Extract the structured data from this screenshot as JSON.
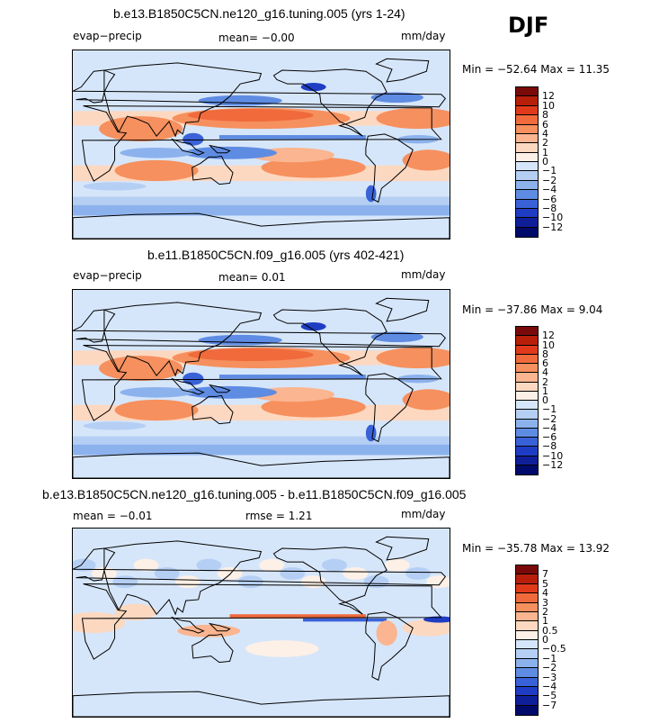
{
  "season": "DJF",
  "chart_data": [
    {
      "type": "heatmap",
      "title": "b.e13.B1850C5CN.ne120_g16.tuning.005 (yrs 1-24)",
      "variable": "evap−precip",
      "mean_text": "mean=   −0.00",
      "units": "mm/day",
      "minmax_text": "Min = −52.64  Max =   11.35",
      "min": -52.64,
      "max": 11.35,
      "levels": [
        "12",
        "10",
        "8",
        "6",
        "4",
        "2",
        "1",
        "0",
        "−1",
        "−2",
        "−4",
        "−6",
        "−8",
        "−10",
        "−12"
      ],
      "colors": [
        "#7a0a0a",
        "#b81f0a",
        "#e03a1a",
        "#f06a3c",
        "#f6905e",
        "#fbb590",
        "#fdd8c0",
        "#fdf0e6",
        "#d6e6fa",
        "#b5cff4",
        "#8cb2ed",
        "#5f8ce3",
        "#3a62d8",
        "#1f3dc4",
        "#0f1f9a",
        "#000a6a"
      ]
    },
    {
      "type": "heatmap",
      "title": "b.e11.B1850C5CN.f09_g16.005 (yrs 402-421)",
      "variable": "evap−precip",
      "mean_text": "mean=   0.01",
      "units": "mm/day",
      "minmax_text": "Min = −37.86  Max =    9.04",
      "min": -37.86,
      "max": 9.04,
      "levels": [
        "12",
        "10",
        "8",
        "6",
        "4",
        "2",
        "1",
        "0",
        "−1",
        "−2",
        "−4",
        "−6",
        "−8",
        "−10",
        "−12"
      ],
      "colors": [
        "#7a0a0a",
        "#b81f0a",
        "#e03a1a",
        "#f06a3c",
        "#f6905e",
        "#fbb590",
        "#fdd8c0",
        "#fdf0e6",
        "#d6e6fa",
        "#b5cff4",
        "#8cb2ed",
        "#5f8ce3",
        "#3a62d8",
        "#1f3dc4",
        "#0f1f9a",
        "#000a6a"
      ]
    },
    {
      "type": "heatmap",
      "title": "b.e13.B1850C5CN.ne120_g16.tuning.005 - b.e11.B1850C5CN.f09_g16.005",
      "mean_text": "mean =   −0.01",
      "rmse_text": "rmse =    1.21",
      "units": "mm/day",
      "minmax_text": "Min = −35.78  Max =   13.92",
      "min": -35.78,
      "max": 13.92,
      "levels": [
        "7",
        "5",
        "4",
        "3",
        "2",
        "1",
        "0.5",
        "0",
        "−0.5",
        "−1",
        "−2",
        "−3",
        "−4",
        "−5",
        "−7"
      ],
      "colors": [
        "#7a0a0a",
        "#b81f0a",
        "#e03a1a",
        "#f06a3c",
        "#f6905e",
        "#fbb590",
        "#fdd8c0",
        "#fdf0e6",
        "#d6e6fa",
        "#b5cff4",
        "#8cb2ed",
        "#5f8ce3",
        "#3a62d8",
        "#1f3dc4",
        "#0f1f9a",
        "#000a6a"
      ]
    }
  ]
}
